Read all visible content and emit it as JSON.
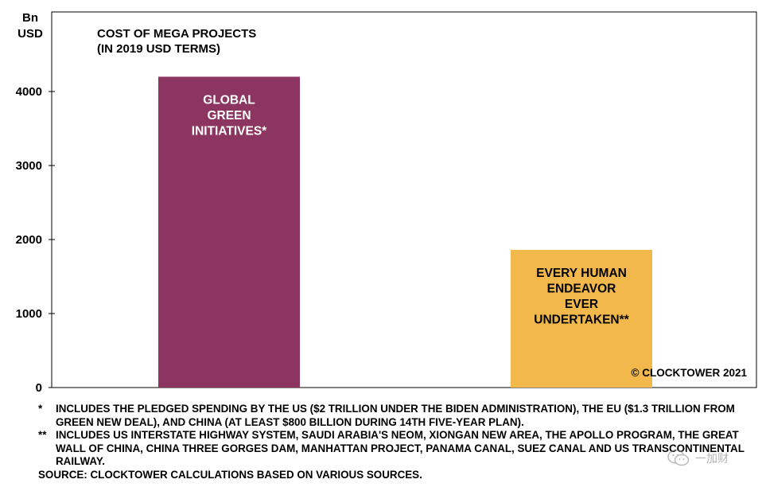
{
  "chart_data": {
    "type": "bar",
    "title": "COST OF MEGA PROJECTS",
    "subtitle": "(IN 2019 USD TERMS)",
    "ylabel_lines": [
      "Bn",
      "USD"
    ],
    "categories": [
      "GLOBAL GREEN INITIATIVES*",
      "EVERY HUMAN ENDEAVOR EVER UNDERTAKEN**"
    ],
    "values": [
      4200,
      1860
    ],
    "bar_labels": [
      [
        "GLOBAL",
        "GREEN",
        "INITIATIVES*"
      ],
      [
        "EVERY HUMAN",
        "ENDEAVOR",
        "EVER",
        "UNDERTAKEN**"
      ]
    ],
    "colors": [
      "#8b3560",
      "#f2b84b"
    ],
    "bar_label_colors": [
      "#ffffff",
      "#000000"
    ],
    "ylim": [
      0,
      4700
    ],
    "yticks": [
      0,
      1000,
      2000,
      3000,
      4000
    ],
    "grid": false,
    "copyright": "© CLOCKTOWER 2021"
  },
  "footnotes": [
    {
      "mark": "*",
      "text": "INCLUDES THE PLEDGED SPENDING BY THE US ($2 TRILLION UNDER THE BIDEN ADMINISTRATION), THE EU ($1.3 TRILLION FROM GREEN NEW DEAL), AND CHINA (AT LEAST $800 BILLION DURING 14TH FIVE-YEAR PLAN)."
    },
    {
      "mark": "**",
      "text": "INCLUDES US INTERSTATE HIGHWAY SYSTEM, SAUDI ARABIA'S NEOM, XIONGAN NEW AREA, THE APOLLO PROGRAM, THE GREAT WALL OF CHINA, CHINA THREE GORGES DAM, MANHATTAN PROJECT, PANAMA CANAL, SUEZ CANAL AND US TRANSCONTINENTAL RAILWAY."
    }
  ],
  "source": "SOURCE: CLOCKTOWER CALCULATIONS BASED ON VARIOUS SOURCES.",
  "watermark": {
    "icon": "wechat-icon",
    "text": "一加财"
  }
}
